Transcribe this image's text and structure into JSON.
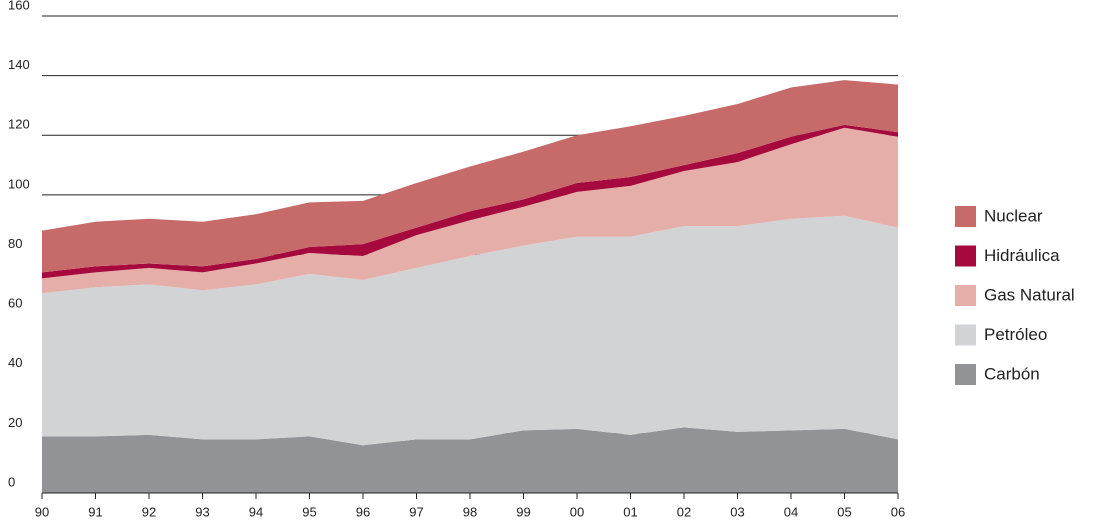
{
  "chart_data": {
    "type": "stacked_area",
    "categories": [
      "90",
      "91",
      "92",
      "93",
      "94",
      "95",
      "96",
      "97",
      "98",
      "99",
      "00",
      "01",
      "02",
      "03",
      "04",
      "05",
      "06"
    ],
    "series": [
      {
        "name": "Carbón",
        "color": "#929396",
        "values": [
          19,
          19,
          19.5,
          18,
          18,
          19,
          16,
          18,
          18,
          21,
          21.5,
          19.5,
          22,
          20.5,
          21,
          21.5,
          18
        ]
      },
      {
        "name": "Petróleo",
        "color": "#d2d3d5",
        "values": [
          48,
          50,
          50.5,
          50,
          52,
          54.5,
          55.5,
          57.5,
          61.5,
          62,
          64.5,
          66.5,
          67.5,
          69,
          71,
          71.5,
          71
        ]
      },
      {
        "name": "Gas Natural",
        "color": "#e5aea8",
        "values": [
          5,
          5,
          5.5,
          6,
          7,
          7,
          8,
          11,
          12,
          13,
          15,
          17,
          18.5,
          21.5,
          25,
          29.5,
          30.5
        ]
      },
      {
        "name": "Hidráulica",
        "color": "#a6093d",
        "values": [
          2,
          2,
          1.5,
          2,
          1.5,
          2,
          4,
          2.5,
          3,
          2.5,
          3,
          3,
          2,
          3,
          2.5,
          1,
          1.5
        ]
      },
      {
        "name": "Nuclear",
        "color": "#c76b6a",
        "values": [
          14,
          15,
          15,
          15,
          15,
          15,
          14.5,
          15,
          15,
          16,
          16,
          17,
          16.5,
          16.5,
          16.5,
          15,
          16
        ]
      }
    ],
    "ylim": [
      0,
      160
    ],
    "yticks": [
      0,
      20,
      40,
      60,
      80,
      100,
      120,
      140,
      160
    ],
    "grid": true
  }
}
